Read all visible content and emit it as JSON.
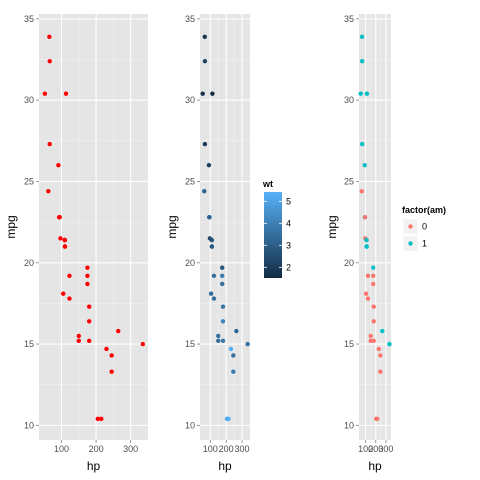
{
  "chart_data": [
    {
      "type": "scatter",
      "xlabel": "hp",
      "ylabel": "mpg",
      "xlim": [
        35,
        350
      ],
      "ylim": [
        9.1,
        35.3
      ],
      "xticks": [
        100,
        200,
        300
      ],
      "yticks": [
        10,
        15,
        20,
        25,
        30,
        35
      ],
      "colors": {
        "point": "#ff0000",
        "panel": "#e5e5e5",
        "grid_major": "#ffffff",
        "grid_minor": "#f2f2f2"
      },
      "points": [
        [
          110,
          21.0
        ],
        [
          110,
          21.0
        ],
        [
          93,
          22.8
        ],
        [
          110,
          21.4
        ],
        [
          175,
          18.7
        ],
        [
          105,
          18.1
        ],
        [
          245,
          14.3
        ],
        [
          62,
          24.4
        ],
        [
          95,
          22.8
        ],
        [
          123,
          19.2
        ],
        [
          123,
          17.8
        ],
        [
          180,
          16.4
        ],
        [
          180,
          17.3
        ],
        [
          180,
          15.2
        ],
        [
          205,
          10.4
        ],
        [
          215,
          10.4
        ],
        [
          230,
          14.7
        ],
        [
          66,
          32.4
        ],
        [
          52,
          30.4
        ],
        [
          65,
          33.9
        ],
        [
          97,
          21.5
        ],
        [
          150,
          15.5
        ],
        [
          150,
          15.2
        ],
        [
          245,
          13.3
        ],
        [
          175,
          19.2
        ],
        [
          66,
          27.3
        ],
        [
          91,
          26.0
        ],
        [
          113,
          30.4
        ],
        [
          264,
          15.8
        ],
        [
          175,
          19.7
        ],
        [
          335,
          15.0
        ],
        [
          109,
          21.4
        ]
      ]
    },
    {
      "type": "scatter",
      "xlabel": "hp",
      "ylabel": "mpg",
      "xlim": [
        35,
        350
      ],
      "ylim": [
        9.1,
        35.3
      ],
      "xticks": [
        100,
        200,
        300
      ],
      "xtick_labels": [
        "100",
        "200",
        "300"
      ],
      "yticks": [
        10,
        15,
        20,
        25,
        30,
        35
      ],
      "color_by": "wt",
      "legend": {
        "title": "wt",
        "ticks": [
          2,
          3,
          4,
          5
        ],
        "range": [
          1.513,
          5.424
        ],
        "low_color": "#132b43",
        "high_color": "#56b1f7",
        "position": "right"
      },
      "points": [
        [
          110,
          21.0,
          2.62
        ],
        [
          110,
          21.0,
          2.875
        ],
        [
          93,
          22.8,
          2.32
        ],
        [
          110,
          21.4,
          3.215
        ],
        [
          175,
          18.7,
          3.44
        ],
        [
          105,
          18.1,
          3.46
        ],
        [
          245,
          14.3,
          3.57
        ],
        [
          62,
          24.4,
          3.19
        ],
        [
          95,
          22.8,
          3.15
        ],
        [
          123,
          19.2,
          3.44
        ],
        [
          123,
          17.8,
          3.44
        ],
        [
          180,
          16.4,
          4.07
        ],
        [
          180,
          17.3,
          3.73
        ],
        [
          180,
          15.2,
          3.78
        ],
        [
          205,
          10.4,
          5.25
        ],
        [
          215,
          10.4,
          5.424
        ],
        [
          230,
          14.7,
          5.345
        ],
        [
          66,
          32.4,
          2.2
        ],
        [
          52,
          30.4,
          1.615
        ],
        [
          65,
          33.9,
          1.835
        ],
        [
          97,
          21.5,
          2.465
        ],
        [
          150,
          15.5,
          3.52
        ],
        [
          150,
          15.2,
          3.435
        ],
        [
          245,
          13.3,
          3.84
        ],
        [
          175,
          19.2,
          3.845
        ],
        [
          66,
          27.3,
          1.935
        ],
        [
          91,
          26.0,
          2.14
        ],
        [
          113,
          30.4,
          1.513
        ],
        [
          264,
          15.8,
          3.17
        ],
        [
          175,
          19.7,
          2.77
        ],
        [
          335,
          15.0,
          3.57
        ],
        [
          109,
          21.4,
          2.78
        ]
      ]
    },
    {
      "type": "scatter",
      "xlabel": "hp",
      "ylabel": "mpg",
      "xlim": [
        35,
        350
      ],
      "ylim": [
        9.1,
        35.3
      ],
      "xticks": [
        100,
        200,
        300
      ],
      "xtick_labels": [
        "100",
        "200",
        "300"
      ],
      "yticks": [
        10,
        15,
        20,
        25,
        30,
        35
      ],
      "color_by": "factor(am)",
      "legend": {
        "title": "factor(am)",
        "items": [
          {
            "label": "0",
            "color": "#f8766d"
          },
          {
            "label": "1",
            "color": "#00bfc4"
          }
        ],
        "position": "right"
      },
      "points": [
        [
          110,
          21.0,
          "1"
        ],
        [
          110,
          21.0,
          "1"
        ],
        [
          93,
          22.8,
          "1"
        ],
        [
          110,
          21.4,
          "0"
        ],
        [
          175,
          18.7,
          "0"
        ],
        [
          105,
          18.1,
          "0"
        ],
        [
          245,
          14.3,
          "0"
        ],
        [
          62,
          24.4,
          "0"
        ],
        [
          95,
          22.8,
          "0"
        ],
        [
          123,
          19.2,
          "0"
        ],
        [
          123,
          17.8,
          "0"
        ],
        [
          180,
          16.4,
          "0"
        ],
        [
          180,
          17.3,
          "0"
        ],
        [
          180,
          15.2,
          "0"
        ],
        [
          205,
          10.4,
          "0"
        ],
        [
          215,
          10.4,
          "0"
        ],
        [
          230,
          14.7,
          "0"
        ],
        [
          66,
          32.4,
          "1"
        ],
        [
          52,
          30.4,
          "1"
        ],
        [
          65,
          33.9,
          "1"
        ],
        [
          97,
          21.5,
          "0"
        ],
        [
          150,
          15.5,
          "0"
        ],
        [
          150,
          15.2,
          "0"
        ],
        [
          245,
          13.3,
          "0"
        ],
        [
          175,
          19.2,
          "0"
        ],
        [
          66,
          27.3,
          "1"
        ],
        [
          91,
          26.0,
          "1"
        ],
        [
          113,
          30.4,
          "1"
        ],
        [
          264,
          15.8,
          "1"
        ],
        [
          175,
          19.7,
          "1"
        ],
        [
          335,
          15.0,
          "1"
        ],
        [
          109,
          21.4,
          "1"
        ]
      ]
    }
  ]
}
